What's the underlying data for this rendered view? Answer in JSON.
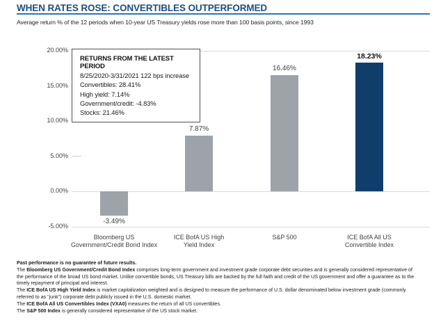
{
  "header": {
    "title": "WHEN RATES ROSE: CONVERTIBLES OUTPERFORMED",
    "subtitle": "Average return % of the 12 periods when 10-year US Treasury yields rose more than 100 basis points, since 1993"
  },
  "colors": {
    "title_blue": "#1C4E80",
    "rule_blue": "#2E74B5",
    "bar_gray": "#9EA3AA",
    "bar_navy": "#103E6B",
    "gridline": "#D9D9D9"
  },
  "annotation": {
    "title": "RETURNS FROM THE LATEST PERIOD",
    "lines": [
      "8/25/2020-3/31/2021 122 bps increase",
      "Convertibles: 28.41%",
      "High yield: 7.14%",
      "Government/credit: -4.83%",
      "Stocks: 21.46%"
    ]
  },
  "chart_data": {
    "type": "bar",
    "title": "WHEN RATES ROSE: CONVERTIBLES OUTPERFORMED",
    "subtitle": "Average return % of the 12 periods when 10-year US Treasury yields rose more than 100 basis points, since 1993",
    "categories": [
      "Bloomberg US Government/Credit Bond Index",
      "ICE BofA US High Yield Index",
      "S&P 500",
      "ICE BofA All US Convertible Index"
    ],
    "category_lines": [
      [
        "Bloomberg US",
        "Government/Credit Bond Index"
      ],
      [
        "ICE BofA US High",
        "Yield Index"
      ],
      [
        "S&P 500"
      ],
      [
        "ICE BofA All US",
        "Convertible Index"
      ]
    ],
    "values": [
      -3.49,
      7.87,
      16.46,
      18.23
    ],
    "value_labels": [
      "-3.49%",
      "7.87%",
      "16.46%",
      "18.23%"
    ],
    "highlight_index": 3,
    "bar_color_default": "#9EA3AA",
    "bar_color_highlight": "#103E6B",
    "ylim": [
      -5,
      20
    ],
    "yticks": [
      20,
      15,
      10,
      5,
      0,
      -5
    ],
    "ytick_labels": [
      "20.00%",
      "15.00%",
      "10.00%",
      "5.00%",
      "0.00%",
      "-5.00%"
    ],
    "full_gridline_values": [
      20,
      0,
      -5
    ],
    "xlabel": "",
    "ylabel": "",
    "legend": "none",
    "grid": "partial"
  },
  "footnotes": [
    [
      {
        "t": "Past performance is no guarantee of future results.",
        "b": true
      }
    ],
    [
      {
        "t": "The ",
        "b": false
      },
      {
        "t": "Bloomberg US Government/Credit Bond Index",
        "b": true
      },
      {
        "t": " comprises long-term government and investment grade corporate debt securities and is generally considered representative of the performance of the broad US bond market. Unlike convertible bonds, US Treasury bills are backed by the full faith and credit of the US government and offer a guarantee as to the timely repayment of principal and interest.",
        "b": false
      }
    ],
    [
      {
        "t": "The ",
        "b": false
      },
      {
        "t": "ICE BofA US High Yield Index",
        "b": true
      },
      {
        "t": " is market capitalization weighted and is designed to measure the performance of U.S. dollar denominated below investment grade (commonly referred to as \"junk\") corporate debt publicly issued in the U.S. domestic market.",
        "b": false
      }
    ],
    [
      {
        "t": "The ",
        "b": false
      },
      {
        "t": "ICE BofA All US Convertibles Index (VXA0)",
        "b": true
      },
      {
        "t": " measures the return of all US convertibles.",
        "b": false
      }
    ],
    [
      {
        "t": "The ",
        "b": false
      },
      {
        "t": "S&P 500 Index",
        "b": true
      },
      {
        "t": " is generally considered representative of the US stock market.",
        "b": false
      }
    ]
  ]
}
